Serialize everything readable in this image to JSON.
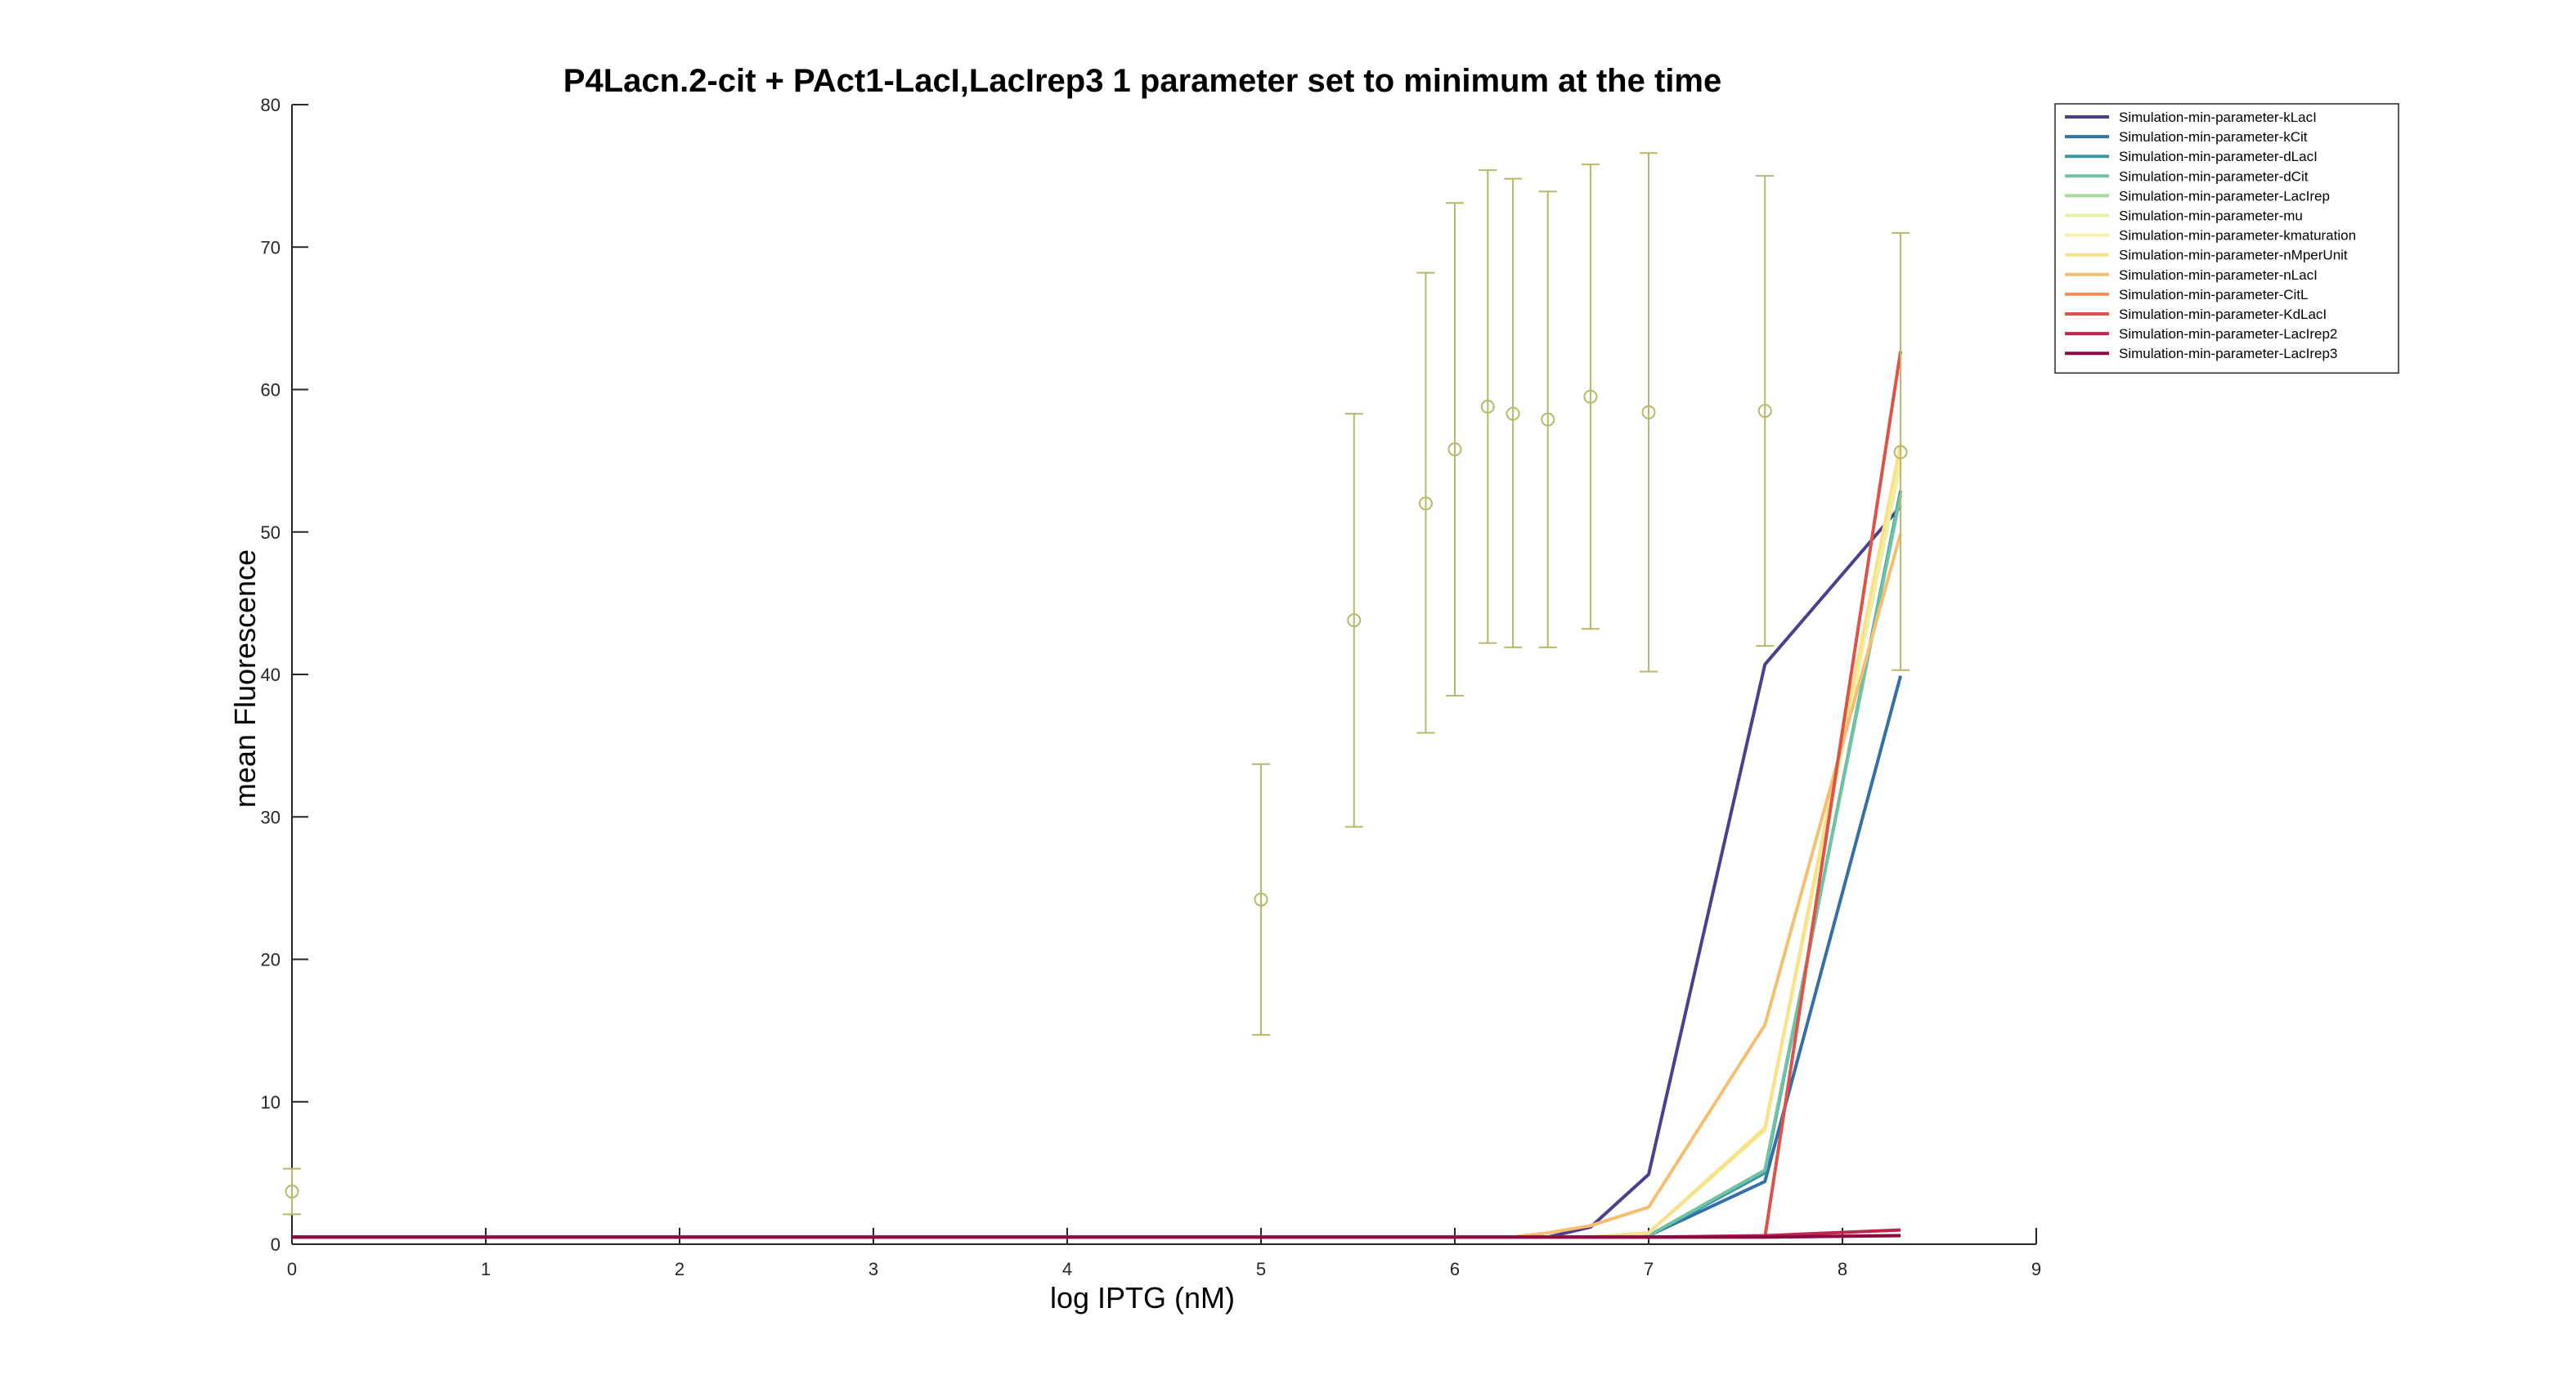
{
  "chart_data": {
    "type": "line",
    "title": "P4Lacn.2-cit + PAct1-LacI,LacIrep3 1 parameter set to minimum at the time",
    "xlabel": "log IPTG (nM)",
    "ylabel": "mean Fluorescence",
    "xlim": [
      0,
      9
    ],
    "ylim": [
      0,
      80
    ],
    "xticks": [
      "0",
      "1",
      "2",
      "3",
      "4",
      "5",
      "6",
      "7",
      "8",
      "9"
    ],
    "yticks": [
      "0",
      "10",
      "20",
      "30",
      "40",
      "50",
      "60",
      "70",
      "80"
    ],
    "grid": false,
    "legend_position": "top-right",
    "x": [
      0,
      5,
      5.48,
      5.85,
      6,
      6.17,
      6.3,
      6.48,
      6.7,
      7,
      7.6,
      8.3
    ],
    "series": [
      {
        "name": "Simulation-min-parameter-kLacI",
        "color": "#4b3f8f",
        "values": [
          0.5,
          0.5,
          0.5,
          0.5,
          0.5,
          0.5,
          0.5,
          0.5,
          1.2,
          4.9,
          40.7,
          51.8
        ]
      },
      {
        "name": "Simulation-min-parameter-kCit",
        "color": "#3370a8",
        "values": [
          0.5,
          0.5,
          0.5,
          0.5,
          0.5,
          0.5,
          0.5,
          0.5,
          0.5,
          0.6,
          4.4,
          39.9
        ]
      },
      {
        "name": "Simulation-min-parameter-dLacI",
        "color": "#3b97a8",
        "values": [
          0.5,
          0.5,
          0.5,
          0.5,
          0.5,
          0.5,
          0.5,
          0.5,
          0.5,
          0.6,
          5.0,
          52.9
        ]
      },
      {
        "name": "Simulation-min-parameter-dCit",
        "color": "#6fc3a3",
        "values": [
          0.5,
          0.5,
          0.5,
          0.5,
          0.5,
          0.5,
          0.5,
          0.5,
          0.5,
          0.6,
          5.2,
          52.6
        ]
      },
      {
        "name": "Simulation-min-parameter-LacIrep",
        "color": "#a7d99c",
        "values": [
          0.5,
          0.5,
          0.5,
          0.5,
          0.5,
          0.5,
          0.5,
          0.5,
          0.5,
          0.5,
          0.5,
          0.6
        ]
      },
      {
        "name": "Simulation-min-parameter-mu",
        "color": "#e6f2a0",
        "values": [
          0.5,
          0.5,
          0.5,
          0.5,
          0.5,
          0.5,
          0.5,
          0.5,
          0.5,
          0.8,
          8.2,
          54.9
        ]
      },
      {
        "name": "Simulation-min-parameter-kmaturation",
        "color": "#f5f0a8",
        "values": [
          0.5,
          0.5,
          0.5,
          0.5,
          0.5,
          0.5,
          0.5,
          0.5,
          0.5,
          0.8,
          8.0,
          55.8
        ]
      },
      {
        "name": "Simulation-min-parameter-nMperUnit",
        "color": "#fbe08a",
        "values": [
          0.5,
          0.5,
          0.5,
          0.5,
          0.5,
          0.5,
          0.5,
          0.5,
          0.5,
          0.8,
          8.1,
          56.2
        ]
      },
      {
        "name": "Simulation-min-parameter-nLacI",
        "color": "#f6be6e",
        "values": [
          0.5,
          0.5,
          0.5,
          0.5,
          0.5,
          0.5,
          0.5,
          0.8,
          1.3,
          2.6,
          15.4,
          49.9
        ]
      },
      {
        "name": "Simulation-min-parameter-CitL",
        "color": "#ee9157",
        "values": [
          0.5,
          0.5,
          0.5,
          0.5,
          0.5,
          0.5,
          0.5,
          0.5,
          0.5,
          0.5,
          0.5,
          0.6
        ]
      },
      {
        "name": "Simulation-min-parameter-KdLacI",
        "color": "#df5245",
        "values": [
          0.5,
          0.5,
          0.5,
          0.5,
          0.5,
          0.5,
          0.5,
          0.5,
          0.5,
          0.5,
          0.5,
          62.7
        ]
      },
      {
        "name": "Simulation-min-parameter-LacIrep2",
        "color": "#c1254f",
        "values": [
          0.5,
          0.5,
          0.5,
          0.5,
          0.5,
          0.5,
          0.5,
          0.5,
          0.5,
          0.5,
          0.6,
          1.0
        ]
      },
      {
        "name": "Simulation-min-parameter-LacIrep3",
        "color": "#8a0b43",
        "values": [
          0.5,
          0.5,
          0.5,
          0.5,
          0.5,
          0.5,
          0.5,
          0.5,
          0.5,
          0.5,
          0.5,
          0.6
        ]
      }
    ],
    "measurements": {
      "color": "#b8b86a",
      "marker": "circle",
      "points": [
        {
          "x": 0,
          "y": 3.7,
          "low": 2.1,
          "high": 5.3
        },
        {
          "x": 5,
          "y": 24.2,
          "low": 14.7,
          "high": 33.7
        },
        {
          "x": 5.48,
          "y": 43.8,
          "low": 29.3,
          "high": 58.3
        },
        {
          "x": 5.85,
          "y": 52.0,
          "low": 35.9,
          "high": 68.2
        },
        {
          "x": 6,
          "y": 55.8,
          "low": 38.5,
          "high": 73.1
        },
        {
          "x": 6.17,
          "y": 58.8,
          "low": 42.2,
          "high": 75.4
        },
        {
          "x": 6.3,
          "y": 58.3,
          "low": 41.9,
          "high": 74.8
        },
        {
          "x": 6.48,
          "y": 57.9,
          "low": 41.9,
          "high": 73.9
        },
        {
          "x": 6.7,
          "y": 59.5,
          "low": 43.2,
          "high": 75.8
        },
        {
          "x": 7,
          "y": 58.4,
          "low": 40.2,
          "high": 76.6
        },
        {
          "x": 7.6,
          "y": 58.5,
          "low": 42.0,
          "high": 75.0
        },
        {
          "x": 8.3,
          "y": 55.6,
          "low": 40.3,
          "high": 71.0
        }
      ]
    }
  }
}
